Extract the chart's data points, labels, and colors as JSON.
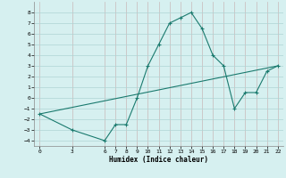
{
  "title": "",
  "xlabel": "Humidex (Indice chaleur)",
  "bg_color": "#d6f0f0",
  "grid_color": "#aed4d4",
  "line_color": "#1a7a6e",
  "curve1_x": [
    0,
    3,
    6,
    7,
    8,
    9,
    10,
    11,
    12,
    13,
    14,
    15,
    16,
    17,
    18,
    19,
    20,
    21,
    22
  ],
  "curve1_y": [
    -1.5,
    -3.0,
    -4.0,
    -2.5,
    -2.5,
    0.0,
    3.0,
    5.0,
    7.0,
    7.5,
    8.0,
    6.5,
    4.0,
    3.0,
    -1.0,
    0.5,
    0.5,
    2.5,
    3.0
  ],
  "curve2_x": [
    0,
    22
  ],
  "curve2_y": [
    -1.5,
    3.0
  ],
  "ylim": [
    -4.5,
    9.0
  ],
  "xlim": [
    -0.5,
    22.5
  ],
  "xticks": [
    0,
    3,
    6,
    7,
    8,
    9,
    10,
    11,
    12,
    13,
    14,
    15,
    16,
    17,
    18,
    19,
    20,
    21,
    22
  ],
  "yticks": [
    -4,
    -3,
    -2,
    -1,
    0,
    1,
    2,
    3,
    4,
    5,
    6,
    7,
    8
  ]
}
